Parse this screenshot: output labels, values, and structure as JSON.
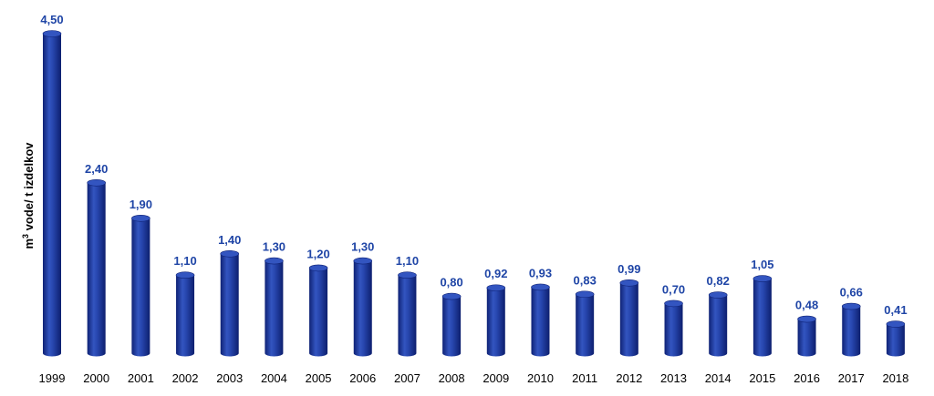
{
  "chart_data": {
    "type": "bar",
    "title": "",
    "xlabel": "",
    "ylabel": "m³ vode/ t izdelkov",
    "ylim": [
      0,
      4.5
    ],
    "grid": false,
    "legend": "none",
    "categories": [
      "1999",
      "2000",
      "2001",
      "2002",
      "2003",
      "2004",
      "2005",
      "2006",
      "2007",
      "2008",
      "2009",
      "2010",
      "2011",
      "2012",
      "2013",
      "2014",
      "2015",
      "2016",
      "2017",
      "2018"
    ],
    "values": [
      4.5,
      2.4,
      1.9,
      1.1,
      1.4,
      1.3,
      1.2,
      1.3,
      1.1,
      0.8,
      0.92,
      0.93,
      0.83,
      0.99,
      0.7,
      0.82,
      1.05,
      0.48,
      0.66,
      0.41
    ],
    "data_labels": [
      "4,50",
      "2,40",
      "1,90",
      "1,10",
      "1,40",
      "1,30",
      "1,20",
      "1,30",
      "1,10",
      "0,80",
      "0,92",
      "0,93",
      "0,83",
      "0,99",
      "0,70",
      "0,82",
      "1,05",
      "0,48",
      "0,66",
      "0,41"
    ],
    "colors": {
      "bar": "#1F3FA0",
      "bar_dark": "#0F2275",
      "bar_light": "#4A6BD0",
      "bar_top": "#3355C0",
      "label": "#1F45A6"
    }
  }
}
